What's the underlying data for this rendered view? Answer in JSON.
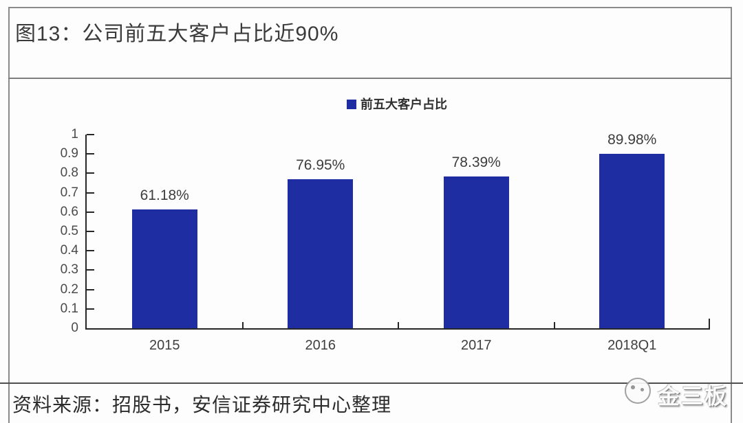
{
  "figure": {
    "title": "图13：公司前五大客户占比近90%",
    "source": "资料来源：招股书，安信证券研究中心整理",
    "watermark": "金三板"
  },
  "chart_data": {
    "type": "bar",
    "title": "公司前五大客户占比近90%",
    "legend_label": "前五大客户占比",
    "legend_position": "top-center",
    "categories": [
      "2015",
      "2016",
      "2017",
      "2018Q1"
    ],
    "values": [
      0.6118,
      0.7695,
      0.7839,
      0.8998
    ],
    "value_labels": [
      "61.18%",
      "76.95%",
      "78.39%",
      "89.98%"
    ],
    "xlabel": "",
    "ylabel": "",
    "ylim": [
      0,
      1
    ],
    "ytick_labels": [
      "0",
      "0.1",
      "0.2",
      "0.3",
      "0.4",
      "0.5",
      "0.6",
      "0.7",
      "0.8",
      "0.9",
      "1"
    ],
    "grid": false,
    "bar_color": "#1f2da3",
    "axis_color": "#262626"
  },
  "colors": {
    "bar_blue": "#1f2da3",
    "border_gray": "#8a8a8a",
    "text_dark": "#2c2c2c"
  }
}
